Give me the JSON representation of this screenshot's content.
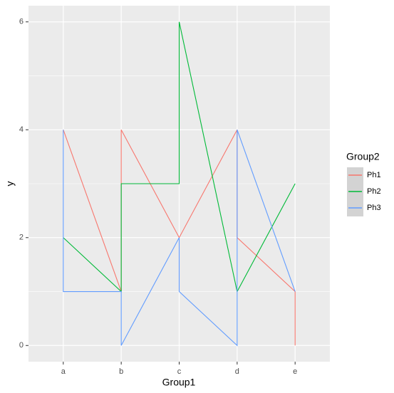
{
  "chart_data": {
    "type": "line",
    "x_label": "Group1",
    "y_label": "y",
    "categories": [
      "a",
      "b",
      "c",
      "d",
      "e"
    ],
    "ylim": [
      -0.3,
      6.3
    ],
    "yticks": [
      0,
      2,
      4,
      6
    ],
    "grid": true,
    "legend_title": "Group2",
    "legend": "right",
    "series": [
      {
        "name": "Ph1",
        "color": "#f8766d",
        "x": [
          "a",
          "b",
          "b",
          "c",
          "d",
          "d",
          "e",
          "e"
        ],
        "values": [
          4,
          1,
          4,
          2,
          4,
          2,
          1,
          0
        ]
      },
      {
        "name": "Ph2",
        "color": "#00ba38",
        "x": [
          "a",
          "b",
          "b",
          "c",
          "c",
          "d",
          "e"
        ],
        "values": [
          2,
          1,
          3,
          3,
          6,
          1,
          3
        ]
      },
      {
        "name": "Ph3",
        "color": "#619cff",
        "x": [
          "a",
          "a",
          "b",
          "b",
          "c",
          "c",
          "d",
          "d",
          "e"
        ],
        "values": [
          4,
          1,
          1,
          0,
          2,
          1,
          0,
          4,
          1
        ]
      }
    ]
  }
}
